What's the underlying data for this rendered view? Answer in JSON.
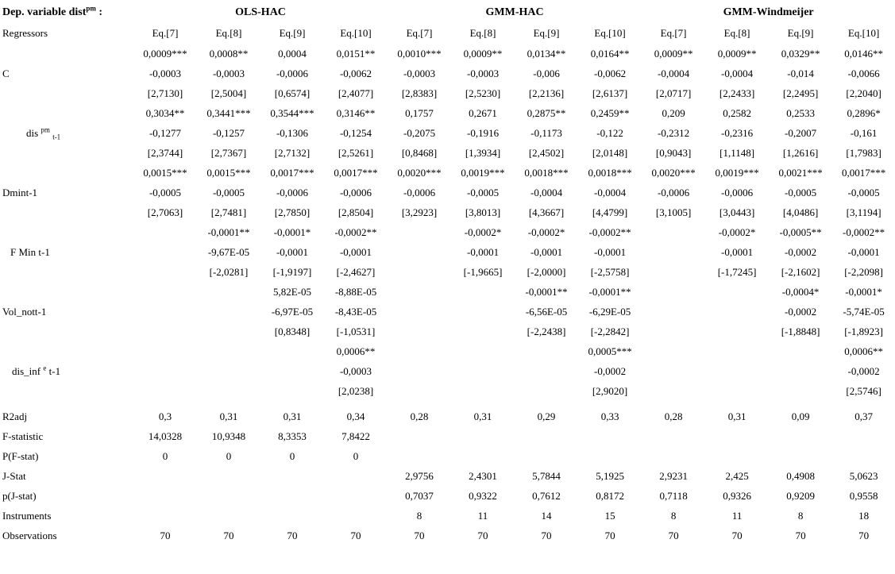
{
  "header": {
    "dep_variable": {
      "text": "Dep. variable dist",
      "sup": "pm",
      "suffix": " :"
    },
    "groups": [
      "OLS-HAC",
      "GMM-HAC",
      "GMM-Windmeijer"
    ],
    "regressors_label": "Regressors",
    "eq_labels": [
      "Eq.[7]",
      "Eq.[8]",
      "Eq.[9]",
      "Eq.[10]"
    ]
  },
  "rows": [
    {
      "label": [],
      "indent": 0,
      "cells": [
        "0,0009***",
        "0,0008**",
        "0,0004",
        "0,0151**",
        "0,0010***",
        "0,0009**",
        "0,0134**",
        "0,0164**",
        "0,0009**",
        "0,0009**",
        "0,0329**",
        "0,0146**"
      ]
    },
    {
      "label": [
        {
          "t": "C"
        }
      ],
      "indent": 0,
      "cells": [
        "-0,0003",
        "-0,0003",
        "-0,0006",
        "-0,0062",
        "-0,0003",
        "-0,0003",
        "-0,006",
        "-0,0062",
        "-0,0004",
        "-0,0004",
        "-0,014",
        "-0,0066"
      ]
    },
    {
      "label": [],
      "indent": 0,
      "cells": [
        "[2,7130]",
        "[2,5004]",
        "[0,6574]",
        "[2,4077]",
        "[2,8383]",
        "[2,5230]",
        "[2,2136]",
        "[2,6137]",
        "[2,0717]",
        "[2,2433]",
        "[2,2495]",
        "[2,2040]"
      ]
    },
    {
      "label": [],
      "indent": 0,
      "cells": [
        "0,3034**",
        "0,3441***",
        "0,3544***",
        "0,3146**",
        "0,1757",
        "0,2671",
        "0,2875**",
        "0,2459**",
        "0,209",
        "0,2582",
        "0,2533",
        "0,2896*"
      ]
    },
    {
      "label": [
        {
          "t": "dis "
        },
        {
          "t": "pm",
          "s": "sup"
        },
        {
          "t": " ",
          "s": ""
        },
        {
          "t": "t-1",
          "s": "sub"
        }
      ],
      "indent": 30,
      "cells": [
        "-0,1277",
        "-0,1257",
        "-0,1306",
        "-0,1254",
        "-0,2075",
        "-0,1916",
        "-0,1173",
        "-0,122",
        "-0,2312",
        "-0,2316",
        "-0,2007",
        "-0,161"
      ]
    },
    {
      "label": [],
      "indent": 0,
      "cells": [
        "[2,3744]",
        "[2,7367]",
        "[2,7132]",
        "[2,5261]",
        "[0,8468]",
        "[1,3934]",
        "[2,4502]",
        "[2,0148]",
        "[0,9043]",
        "[1,1148]",
        "[1,2616]",
        "[1,7983]"
      ]
    },
    {
      "label": [],
      "indent": 0,
      "cells": [
        "0,0015***",
        "0,0015***",
        "0,0017***",
        "0,0017***",
        "0,0020***",
        "0,0019***",
        "0,0018***",
        "0,0018***",
        "0,0020***",
        "0,0019***",
        "0,0021***",
        "0,0017***"
      ]
    },
    {
      "label": [
        {
          "t": "Dmint-1"
        }
      ],
      "indent": 0,
      "cells": [
        "-0,0005",
        "-0,0005",
        "-0,0006",
        "-0,0006",
        "-0,0006",
        "-0,0005",
        "-0,0004",
        "-0,0004",
        "-0,0006",
        "-0,0006",
        "-0,0005",
        "-0,0005"
      ]
    },
    {
      "label": [],
      "indent": 0,
      "cells": [
        "[2,7063]",
        "[2,7481]",
        "[2,7850]",
        "[2,8504]",
        "[3,2923]",
        "[3,8013]",
        "[4,3667]",
        "[4,4799]",
        "[3,1005]",
        "[3,0443]",
        "[4,0486]",
        "[3,1194]"
      ]
    },
    {
      "label": [],
      "indent": 0,
      "cells": [
        "",
        "-0,0001**",
        "-0,0001*",
        "-0,0002**",
        "",
        "-0,0002*",
        "-0,0002*",
        "-0,0002**",
        "",
        "-0,0002*",
        "-0,0005**",
        "-0,0002**"
      ]
    },
    {
      "label": [
        {
          "t": "F Min t-1"
        }
      ],
      "indent": 10,
      "cells": [
        "",
        "-9,67E-05",
        "-0,0001",
        "-0,0001",
        "",
        "-0,0001",
        "-0,0001",
        "-0,0001",
        "",
        "-0,0001",
        "-0,0002",
        "-0,0001"
      ]
    },
    {
      "label": [],
      "indent": 0,
      "cells": [
        "",
        "[-2,0281]",
        "[-1,9197]",
        "[-2,4627]",
        "",
        "[-1,9665]",
        "[-2,0000]",
        "[-2,5758]",
        "",
        "[-1,7245]",
        "[-2,1602]",
        "[-2,2098]"
      ]
    },
    {
      "label": [],
      "indent": 0,
      "cells": [
        "",
        "",
        "5,82E-05",
        "-8,88E-05",
        "",
        "",
        "-0,0001**",
        "-0,0001**",
        "",
        "",
        "-0,0004*",
        "-0,0001*"
      ]
    },
    {
      "label": [
        {
          "t": "Vol_nott-1"
        }
      ],
      "indent": 0,
      "cells": [
        "",
        "",
        "-6,97E-05",
        "-8,43E-05",
        "",
        "",
        "-6,56E-05",
        "-6,29E-05",
        "",
        "",
        "-0,0002",
        "-5,74E-05"
      ]
    },
    {
      "label": [],
      "indent": 0,
      "cells": [
        "",
        "",
        "[0,8348]",
        "[-1,0531]",
        "",
        "",
        "[-2,2438]",
        "[-2,2842]",
        "",
        "",
        "[-1,8848]",
        "[-1,8923]"
      ]
    },
    {
      "label": [],
      "indent": 0,
      "cells": [
        "",
        "",
        "",
        "0,0006**",
        "",
        "",
        "",
        "0,0005***",
        "",
        "",
        "",
        "0,0006**"
      ]
    },
    {
      "label": [
        {
          "t": "dis_inf "
        },
        {
          "t": "e",
          "s": "sup"
        },
        {
          "t": " t-1"
        }
      ],
      "indent": 12,
      "cells": [
        "",
        "",
        "",
        "-0,0003",
        "",
        "",
        "",
        "-0,0002",
        "",
        "",
        "",
        "-0,0002"
      ]
    },
    {
      "label": [],
      "indent": 0,
      "cells": [
        "",
        "",
        "",
        "[2,0238]",
        "",
        "",
        "",
        "[2,9020]",
        "",
        "",
        "",
        "[2,5746]"
      ]
    },
    {
      "label": [
        {
          "t": "R2adj"
        }
      ],
      "indent": 0,
      "cls": "gap-top",
      "cells": [
        "0,3",
        "0,31",
        "0,31",
        "0,34",
        "0,28",
        "0,31",
        "0,29",
        "0,33",
        "0,28",
        "0,31",
        "0,09",
        "0,37"
      ]
    },
    {
      "label": [
        {
          "t": "F-statistic"
        }
      ],
      "indent": 0,
      "cells": [
        "14,0328",
        "10,9348",
        "8,3353",
        "7,8422",
        "",
        "",
        "",
        "",
        "",
        "",
        "",
        ""
      ]
    },
    {
      "label": [
        {
          "t": "P(F-stat)"
        }
      ],
      "indent": 0,
      "cells": [
        "0",
        "0",
        "0",
        "0",
        "",
        "",
        "",
        "",
        "",
        "",
        "",
        ""
      ]
    },
    {
      "label": [
        {
          "t": "J-Stat"
        }
      ],
      "indent": 0,
      "cells": [
        "",
        "",
        "",
        "",
        "2,9756",
        "2,4301",
        "5,7844",
        "5,1925",
        "2,9231",
        "2,425",
        "0,4908",
        "5,0623"
      ]
    },
    {
      "label": [
        {
          "t": "p(J-stat)"
        }
      ],
      "indent": 0,
      "cells": [
        "",
        "",
        "",
        "",
        "0,7037",
        "0,9322",
        "0,7612",
        "0,8172",
        "0,7118",
        "0,9326",
        "0,9209",
        "0,9558"
      ]
    },
    {
      "label": [
        {
          "t": "Instruments"
        }
      ],
      "indent": 0,
      "cells": [
        "",
        "",
        "",
        "",
        "8",
        "11",
        "14",
        "15",
        "8",
        "11",
        "8",
        "18"
      ]
    },
    {
      "label": [
        {
          "t": "Observations"
        }
      ],
      "indent": 0,
      "cells": [
        "70",
        "70",
        "70",
        "70",
        "70",
        "70",
        "70",
        "70",
        "70",
        "70",
        "70",
        "70"
      ]
    }
  ]
}
